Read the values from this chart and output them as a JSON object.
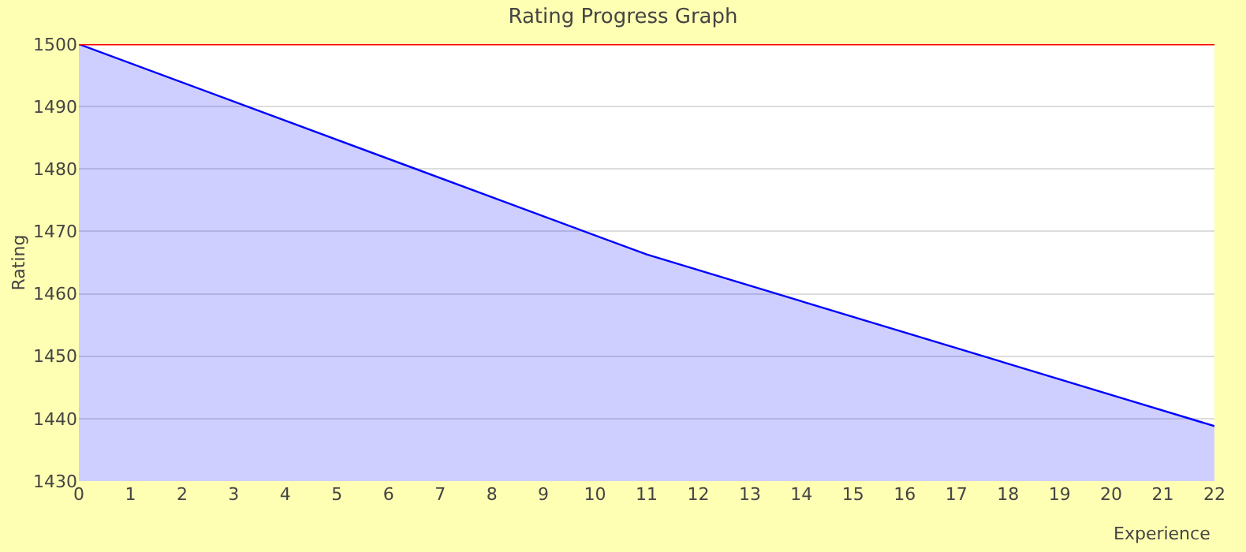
{
  "chart_data": {
    "type": "area",
    "title": "Rating Progress Graph",
    "xlabel": "Experience",
    "ylabel": "Rating",
    "x": [
      0,
      11,
      22
    ],
    "series": [
      {
        "color": "#0000ff",
        "values": [
          1500,
          1466.3,
          1438.8
        ]
      }
    ],
    "xlim": [
      0,
      22
    ],
    "xticks": [
      0,
      1,
      2,
      3,
      4,
      5,
      6,
      7,
      8,
      9,
      10,
      11,
      12,
      13,
      14,
      15,
      16,
      17,
      18,
      19,
      20,
      21,
      22
    ],
    "ylim": [
      1430,
      1500
    ],
    "yticks": [
      1430,
      1440,
      1450,
      1460,
      1470,
      1480,
      1490,
      1500
    ],
    "ref_lines": [
      {
        "axis": "y",
        "value": 1500,
        "color": "#ff0000"
      }
    ],
    "grid": "y"
  }
}
